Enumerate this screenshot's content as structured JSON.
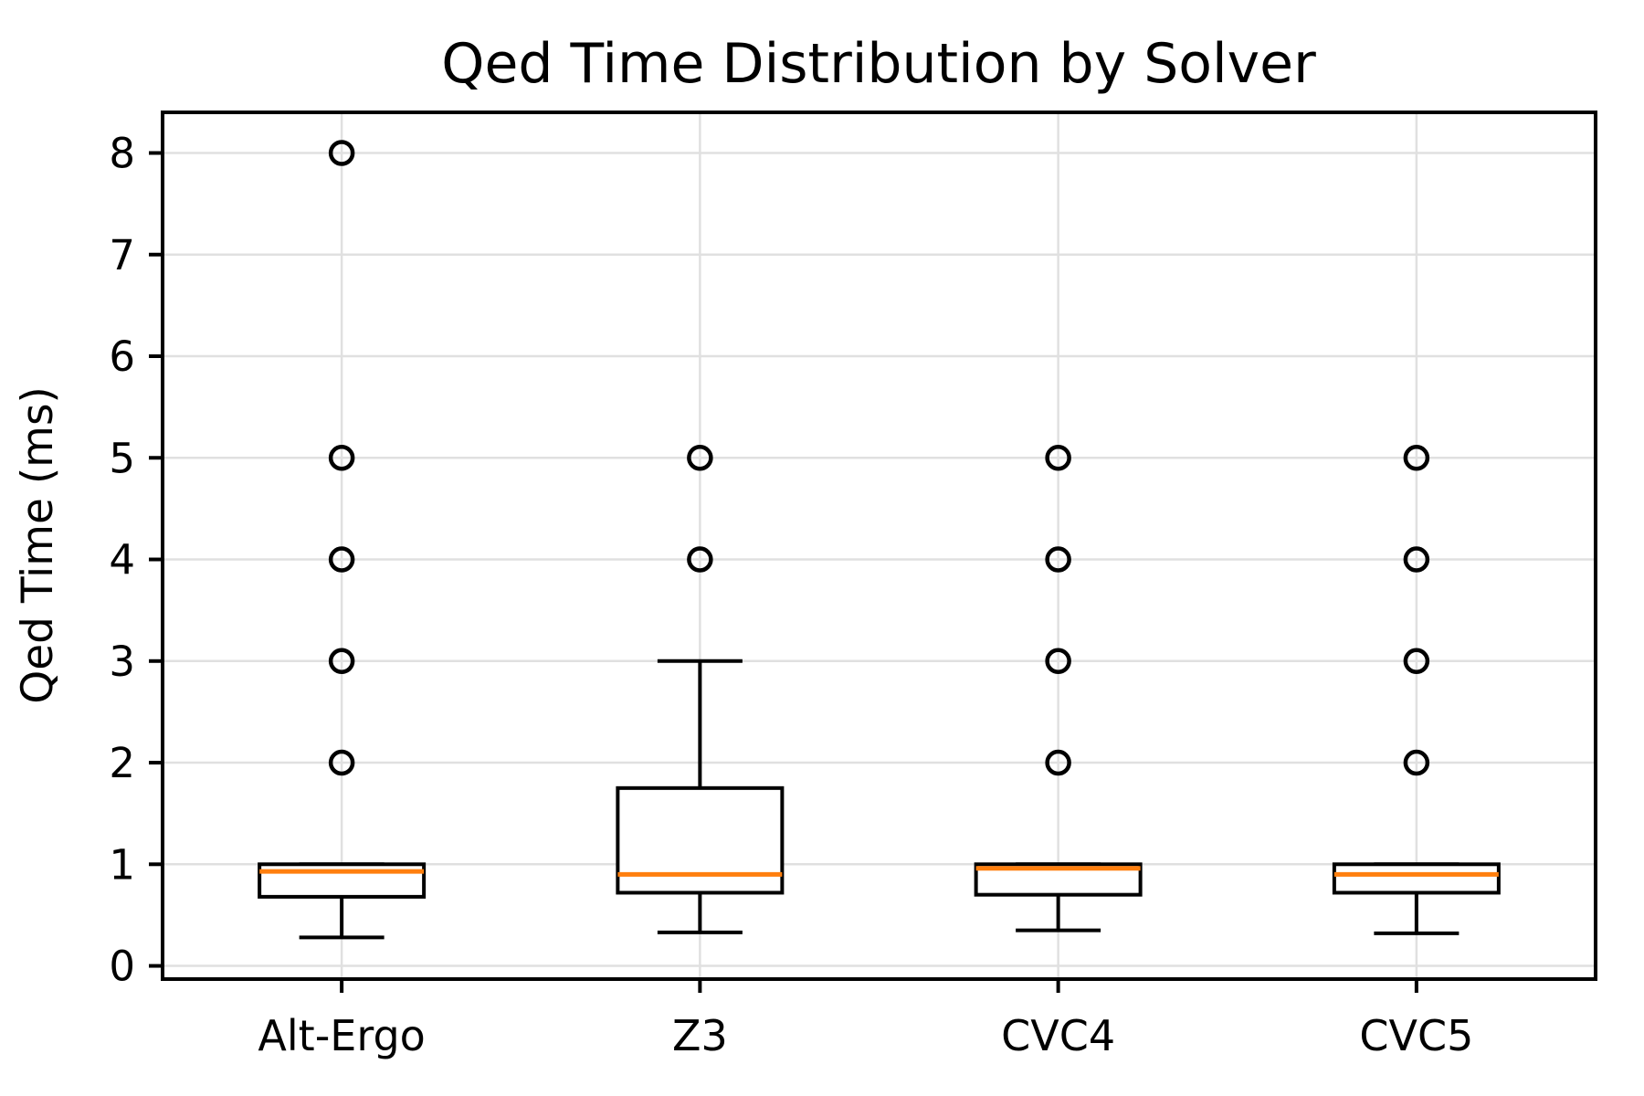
{
  "chart_data": {
    "type": "box",
    "title": "Qed Time Distribution by Solver",
    "ylabel": "Qed Time (ms)",
    "xlabel": "",
    "categories": [
      "Alt-Ergo",
      "Z3",
      "CVC4",
      "CVC5"
    ],
    "y_ticks": [
      0,
      1,
      2,
      3,
      4,
      5,
      6,
      7,
      8
    ],
    "ylim": [
      -0.13,
      8.4
    ],
    "grid": true,
    "legend": "none",
    "series": [
      {
        "name": "Alt-Ergo",
        "whisker_low": 0.28,
        "q1": 0.68,
        "median": 0.93,
        "q3": 1.0,
        "whisker_high": 1.0,
        "outliers": [
          2,
          3,
          4,
          5,
          8
        ]
      },
      {
        "name": "Z3",
        "whisker_low": 0.33,
        "q1": 0.72,
        "median": 0.9,
        "q3": 1.75,
        "whisker_high": 3.0,
        "outliers": [
          4,
          5
        ]
      },
      {
        "name": "CVC4",
        "whisker_low": 0.35,
        "q1": 0.7,
        "median": 0.96,
        "q3": 1.0,
        "whisker_high": 1.0,
        "outliers": [
          2,
          3,
          4,
          5
        ]
      },
      {
        "name": "CVC5",
        "whisker_low": 0.32,
        "q1": 0.72,
        "median": 0.9,
        "q3": 1.0,
        "whisker_high": 1.0,
        "outliers": [
          2,
          3,
          4,
          5
        ]
      }
    ],
    "colors": {
      "box_stroke": "#000000",
      "box_fill": "#ffffff",
      "median": "#ff7f0e",
      "whisker": "#000000",
      "outlier_stroke": "#000000",
      "grid": "#e0e0e0",
      "spine": "#000000",
      "background": "#ffffff",
      "text": "#000000"
    }
  }
}
